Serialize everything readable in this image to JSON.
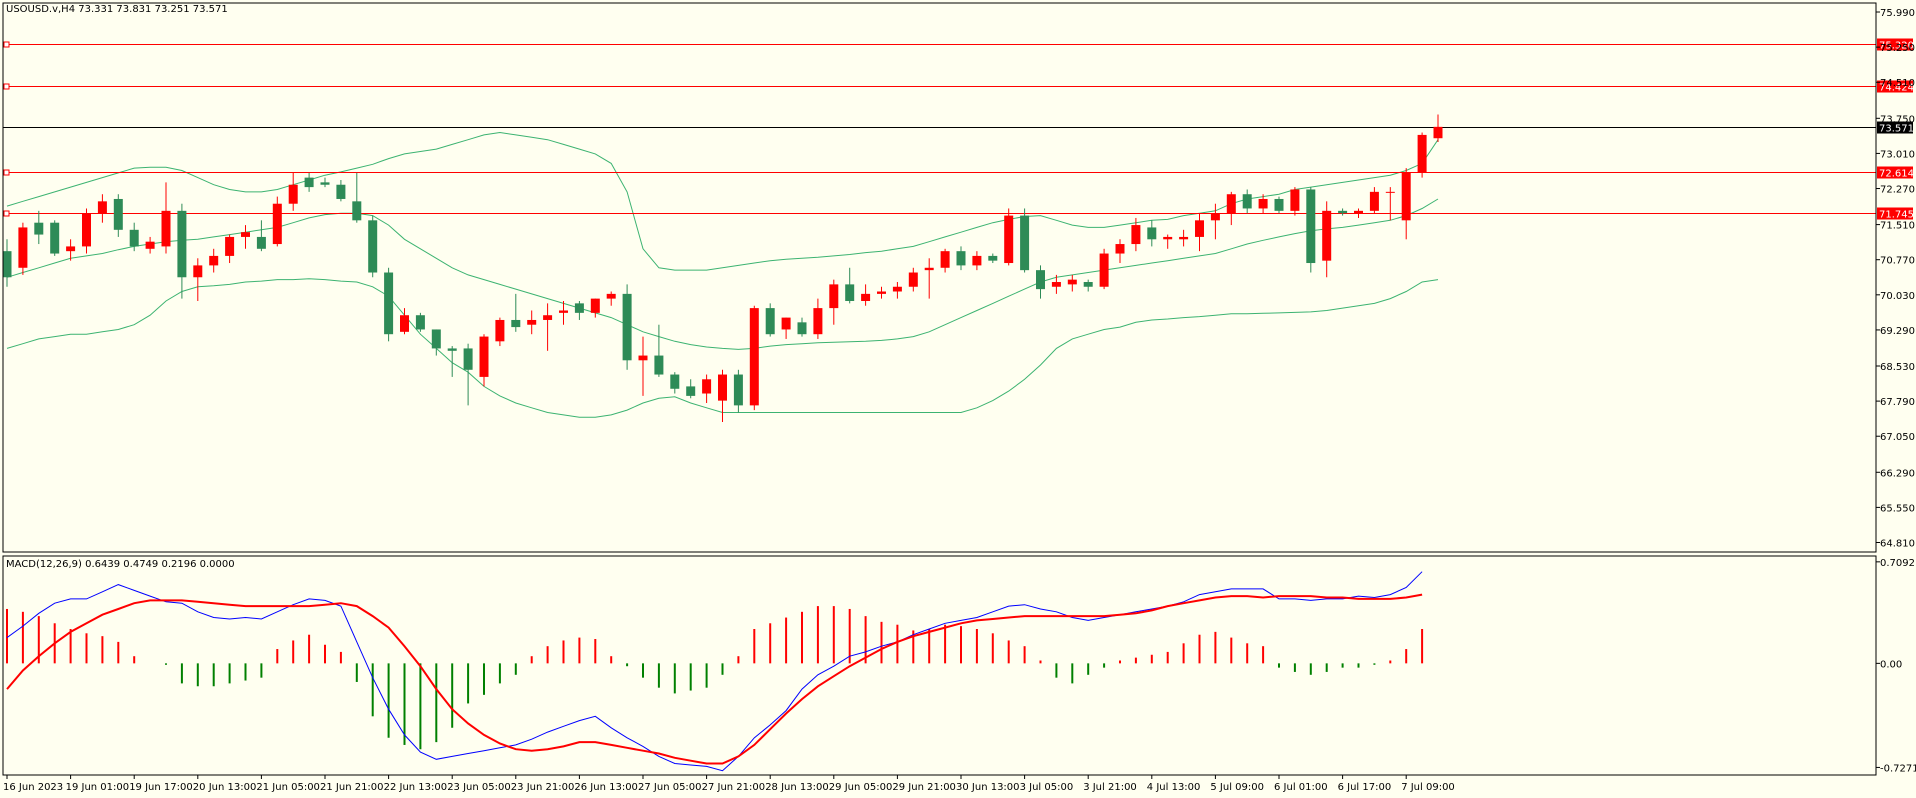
{
  "window": {
    "symbol_line": "USOUSD.v,H4  73.331 73.831 73.251 73.571",
    "macd_line": "MACD(12,26,9) 0.6439 0.4749 0.2196 0.0000"
  },
  "colors": {
    "background": "#fffff0",
    "bull_body": "#ff0000",
    "bear_body": "#2e8b57",
    "bollinger": "#3cb371",
    "level_line": "#ff0000",
    "current_price_line": "#000000",
    "macd_line": "#0000ff",
    "signal_line": "#ff0000",
    "hist_positive": "#ff0000",
    "hist_negative": "#008000"
  },
  "chart_data": [
    {
      "type": "candlestick",
      "title": "USOUSD.v,H4  73.331 73.831 73.251 73.571",
      "ylim": [
        64.61,
        76.18
      ],
      "y_ticks": [
        "75.990",
        "75.250",
        "74.510",
        "73.750",
        "73.010",
        "72.270",
        "71.510",
        "70.770",
        "70.030",
        "69.290",
        "68.530",
        "67.790",
        "67.050",
        "66.290",
        "65.550",
        "64.810"
      ],
      "x_tick_labels": [
        "16 Jun 2023",
        "19 Jun 01:00",
        "19 Jun 17:00",
        "20 Jun 13:00",
        "21 Jun 05:00",
        "21 Jun 21:00",
        "22 Jun 13:00",
        "23 Jun 05:00",
        "23 Jun 21:00",
        "26 Jun 13:00",
        "27 Jun 05:00",
        "27 Jun 21:00",
        "28 Jun 13:00",
        "29 Jun 05:00",
        "29 Jun 21:00",
        "30 Jun 13:00",
        "3 Jul 05:00",
        "3 Jul 21:00",
        "4 Jul 13:00",
        "5 Jul 09:00",
        "6 Jul 01:00",
        "6 Jul 17:00",
        "7 Jul 09:00"
      ],
      "levels": [
        {
          "label": "75.320",
          "value": 75.32
        },
        {
          "label": "74.424",
          "value": 74.424
        },
        {
          "label": "72.614",
          "value": 72.614
        },
        {
          "label": "71.745",
          "value": 71.745
        }
      ],
      "current_price": {
        "label": "73.571",
        "value": 73.571
      },
      "candles": [
        [
          70.95,
          71.2,
          70.2,
          70.4
        ],
        [
          70.6,
          71.55,
          70.45,
          71.45
        ],
        [
          71.55,
          71.8,
          71.1,
          71.3
        ],
        [
          71.55,
          71.6,
          70.85,
          70.9
        ],
        [
          70.95,
          71.2,
          70.75,
          71.05
        ],
        [
          71.05,
          71.85,
          70.9,
          71.75
        ],
        [
          71.75,
          72.15,
          71.55,
          72.0
        ],
        [
          72.05,
          72.15,
          71.25,
          71.4
        ],
        [
          71.4,
          71.55,
          70.95,
          71.05
        ],
        [
          71.0,
          71.25,
          70.9,
          71.15
        ],
        [
          71.05,
          72.4,
          70.9,
          71.8
        ],
        [
          71.8,
          71.95,
          69.95,
          70.4
        ],
        [
          70.4,
          70.8,
          69.9,
          70.65
        ],
        [
          70.65,
          71.0,
          70.5,
          70.85
        ],
        [
          70.85,
          71.3,
          70.7,
          71.25
        ],
        [
          71.25,
          71.5,
          71.0,
          71.35
        ],
        [
          71.25,
          71.6,
          70.95,
          71.0
        ],
        [
          71.1,
          72.1,
          71.05,
          71.95
        ],
        [
          71.95,
          72.6,
          71.8,
          72.35
        ],
        [
          72.5,
          72.6,
          72.2,
          72.3
        ],
        [
          72.4,
          72.5,
          72.3,
          72.35
        ],
        [
          72.35,
          72.45,
          72.0,
          72.05
        ],
        [
          72.0,
          72.6,
          71.55,
          71.6
        ],
        [
          71.6,
          71.7,
          70.4,
          70.5
        ],
        [
          70.5,
          70.6,
          69.05,
          69.2
        ],
        [
          69.25,
          69.75,
          69.2,
          69.6
        ],
        [
          69.6,
          69.65,
          69.25,
          69.3
        ],
        [
          69.3,
          69.3,
          68.75,
          68.9
        ],
        [
          68.9,
          68.95,
          68.3,
          68.85
        ],
        [
          68.9,
          69.0,
          67.7,
          68.45
        ],
        [
          68.3,
          69.2,
          68.1,
          69.15
        ],
        [
          69.05,
          69.55,
          68.95,
          69.5
        ],
        [
          69.5,
          70.05,
          69.25,
          69.35
        ],
        [
          69.4,
          69.7,
          69.2,
          69.5
        ],
        [
          69.5,
          69.85,
          68.85,
          69.6
        ],
        [
          69.65,
          69.9,
          69.4,
          69.7
        ],
        [
          69.85,
          69.9,
          69.5,
          69.65
        ],
        [
          69.65,
          69.95,
          69.55,
          69.95
        ],
        [
          69.95,
          70.1,
          69.8,
          70.05
        ],
        [
          70.05,
          70.25,
          68.45,
          68.65
        ],
        [
          68.65,
          69.15,
          67.9,
          68.75
        ],
        [
          68.75,
          69.4,
          68.3,
          68.35
        ],
        [
          68.35,
          68.4,
          67.95,
          68.05
        ],
        [
          68.1,
          68.25,
          67.85,
          67.9
        ],
        [
          67.95,
          68.35,
          67.75,
          68.25
        ],
        [
          67.8,
          68.45,
          67.35,
          68.35
        ],
        [
          68.35,
          68.45,
          67.55,
          67.7
        ],
        [
          67.7,
          69.8,
          67.6,
          69.75
        ],
        [
          69.75,
          69.85,
          69.15,
          69.2
        ],
        [
          69.3,
          69.55,
          69.1,
          69.55
        ],
        [
          69.45,
          69.55,
          69.15,
          69.2
        ],
        [
          69.2,
          69.95,
          69.1,
          69.75
        ],
        [
          69.75,
          70.35,
          69.4,
          70.25
        ],
        [
          70.25,
          70.6,
          69.85,
          69.9
        ],
        [
          69.9,
          70.25,
          69.8,
          70.05
        ],
        [
          70.05,
          70.2,
          69.95,
          70.1
        ],
        [
          70.1,
          70.3,
          69.95,
          70.2
        ],
        [
          70.2,
          70.6,
          70.1,
          70.5
        ],
        [
          70.55,
          70.8,
          69.95,
          70.6
        ],
        [
          70.6,
          71.0,
          70.5,
          70.95
        ],
        [
          70.95,
          71.05,
          70.55,
          70.65
        ],
        [
          70.65,
          70.95,
          70.55,
          70.85
        ],
        [
          70.85,
          70.9,
          70.7,
          70.75
        ],
        [
          70.7,
          71.85,
          70.65,
          71.7
        ],
        [
          71.7,
          71.85,
          70.5,
          70.55
        ],
        [
          70.55,
          70.65,
          69.95,
          70.15
        ],
        [
          70.2,
          70.45,
          70.05,
          70.3
        ],
        [
          70.25,
          70.45,
          70.1,
          70.35
        ],
        [
          70.3,
          70.35,
          70.1,
          70.2
        ],
        [
          70.2,
          71.0,
          70.15,
          70.9
        ],
        [
          70.9,
          71.2,
          70.7,
          71.1
        ],
        [
          71.1,
          71.65,
          70.95,
          71.5
        ],
        [
          71.45,
          71.6,
          71.05,
          71.2
        ],
        [
          71.2,
          71.3,
          71.0,
          71.25
        ],
        [
          71.2,
          71.4,
          71.05,
          71.25
        ],
        [
          71.25,
          71.75,
          70.95,
          71.6
        ],
        [
          71.6,
          71.95,
          71.2,
          71.75
        ],
        [
          71.75,
          72.2,
          71.5,
          72.15
        ],
        [
          72.15,
          72.25,
          71.75,
          71.85
        ],
        [
          71.85,
          72.15,
          71.75,
          72.05
        ],
        [
          72.05,
          72.1,
          71.75,
          71.8
        ],
        [
          71.8,
          72.3,
          71.7,
          72.25
        ],
        [
          72.25,
          72.3,
          70.5,
          70.7
        ],
        [
          70.75,
          72.0,
          70.4,
          71.8
        ],
        [
          71.8,
          71.85,
          71.7,
          71.75
        ],
        [
          71.75,
          71.85,
          71.65,
          71.8
        ],
        [
          71.8,
          72.3,
          71.75,
          72.2
        ],
        [
          72.2,
          72.3,
          71.6,
          72.2
        ],
        [
          71.6,
          72.7,
          71.2,
          72.6
        ],
        [
          72.6,
          73.45,
          72.5,
          73.4
        ],
        [
          73.33,
          73.83,
          73.25,
          73.57
        ]
      ],
      "bb_upper": [
        71.9,
        72.0,
        72.1,
        72.2,
        72.3,
        72.4,
        72.5,
        72.6,
        72.7,
        72.72,
        72.72,
        72.65,
        72.5,
        72.35,
        72.25,
        72.2,
        72.2,
        72.25,
        72.35,
        72.45,
        72.55,
        72.62,
        72.7,
        72.78,
        72.9,
        73.0,
        73.05,
        73.1,
        73.2,
        73.3,
        73.4,
        73.45,
        73.4,
        73.35,
        73.3,
        73.2,
        73.1,
        73.0,
        72.8,
        72.2,
        71.0,
        70.6,
        70.55,
        70.55,
        70.55,
        70.6,
        70.65,
        70.7,
        70.75,
        70.78,
        70.8,
        70.82,
        70.85,
        70.88,
        70.92,
        70.95,
        71.0,
        71.05,
        71.15,
        71.25,
        71.35,
        71.45,
        71.55,
        71.62,
        71.68,
        71.7,
        71.6,
        71.5,
        71.45,
        71.45,
        71.5,
        71.55,
        71.6,
        71.62,
        71.7,
        71.75,
        71.8,
        71.95,
        72.05,
        72.1,
        72.15,
        72.25,
        72.3,
        72.35,
        72.4,
        72.45,
        72.5,
        72.55,
        72.65,
        72.8,
        73.3
      ],
      "bb_middle": [
        70.4,
        70.5,
        70.6,
        70.7,
        70.8,
        70.85,
        70.9,
        70.98,
        71.05,
        71.1,
        71.15,
        71.18,
        71.2,
        71.25,
        71.3,
        71.35,
        71.4,
        71.45,
        71.55,
        71.65,
        71.72,
        71.75,
        71.75,
        71.7,
        71.5,
        71.2,
        71.0,
        70.8,
        70.6,
        70.45,
        70.35,
        70.25,
        70.15,
        70.05,
        69.95,
        69.85,
        69.75,
        69.65,
        69.55,
        69.4,
        69.25,
        69.15,
        69.05,
        68.98,
        68.93,
        68.9,
        68.88,
        68.9,
        68.95,
        68.98,
        69.0,
        69.02,
        69.03,
        69.04,
        69.05,
        69.07,
        69.1,
        69.15,
        69.25,
        69.4,
        69.55,
        69.7,
        69.85,
        70.0,
        70.15,
        70.3,
        70.4,
        70.45,
        70.5,
        70.55,
        70.6,
        70.65,
        70.7,
        70.75,
        70.8,
        70.85,
        70.9,
        71.0,
        71.1,
        71.18,
        71.25,
        71.32,
        71.38,
        71.42,
        71.45,
        71.5,
        71.55,
        71.6,
        71.7,
        71.85,
        72.05
      ],
      "bb_lower": [
        68.9,
        69.0,
        69.1,
        69.15,
        69.2,
        69.2,
        69.25,
        69.3,
        69.4,
        69.6,
        69.9,
        70.1,
        70.2,
        70.22,
        70.25,
        70.3,
        70.32,
        70.35,
        70.35,
        70.37,
        70.35,
        70.32,
        70.3,
        70.2,
        70.0,
        69.6,
        69.2,
        68.9,
        68.6,
        68.4,
        68.1,
        67.9,
        67.75,
        67.65,
        67.55,
        67.5,
        67.45,
        67.45,
        67.5,
        67.6,
        67.75,
        67.85,
        67.88,
        67.75,
        67.65,
        67.55,
        67.55,
        67.55,
        67.55,
        67.55,
        67.55,
        67.55,
        67.55,
        67.55,
        67.55,
        67.55,
        67.55,
        67.55,
        67.55,
        67.55,
        67.55,
        67.65,
        67.8,
        68.0,
        68.25,
        68.55,
        68.9,
        69.1,
        69.2,
        69.3,
        69.35,
        69.45,
        69.5,
        69.52,
        69.55,
        69.57,
        69.6,
        69.63,
        69.63,
        69.64,
        69.65,
        69.66,
        69.67,
        69.7,
        69.75,
        69.8,
        69.85,
        69.95,
        70.1,
        70.3,
        70.35
      ]
    },
    {
      "type": "macd",
      "title": "MACD(12,26,9) 0.6439 0.4749 0.2196 0.0000",
      "ylim": [
        -0.78,
        0.75
      ],
      "y_ticks": [
        "0.7092",
        "0.00",
        "-0.7271"
      ],
      "histogram": [
        0.38,
        0.36,
        0.33,
        0.28,
        0.24,
        0.21,
        0.19,
        0.15,
        0.05,
        0.0,
        -0.01,
        -0.14,
        -0.16,
        -0.16,
        -0.14,
        -0.12,
        -0.1,
        0.1,
        0.16,
        0.2,
        0.13,
        0.08,
        -0.13,
        -0.37,
        -0.52,
        -0.57,
        -0.6,
        -0.55,
        -0.45,
        -0.28,
        -0.22,
        -0.14,
        -0.08,
        0.05,
        0.12,
        0.16,
        0.18,
        0.17,
        0.05,
        -0.02,
        -0.1,
        -0.17,
        -0.21,
        -0.19,
        -0.17,
        -0.08,
        0.05,
        0.24,
        0.28,
        0.32,
        0.36,
        0.4,
        0.4,
        0.38,
        0.33,
        0.29,
        0.27,
        0.23,
        0.24,
        0.27,
        0.26,
        0.24,
        0.21,
        0.16,
        0.12,
        0.02,
        -0.1,
        -0.14,
        -0.08,
        -0.03,
        0.02,
        0.04,
        0.06,
        0.08,
        0.14,
        0.2,
        0.22,
        0.18,
        0.14,
        0.12,
        -0.03,
        -0.06,
        -0.08,
        -0.06,
        -0.03,
        -0.03,
        -0.01,
        0.02,
        0.1,
        0.24
      ],
      "macd": [
        0.18,
        0.26,
        0.35,
        0.42,
        0.45,
        0.45,
        0.5,
        0.55,
        0.51,
        0.47,
        0.43,
        0.42,
        0.36,
        0.32,
        0.31,
        0.32,
        0.31,
        0.36,
        0.41,
        0.45,
        0.44,
        0.4,
        0.15,
        -0.1,
        -0.32,
        -0.5,
        -0.62,
        -0.67,
        -0.65,
        -0.63,
        -0.61,
        -0.59,
        -0.57,
        -0.53,
        -0.48,
        -0.44,
        -0.4,
        -0.37,
        -0.45,
        -0.52,
        -0.58,
        -0.65,
        -0.7,
        -0.71,
        -0.72,
        -0.75,
        -0.65,
        -0.52,
        -0.43,
        -0.33,
        -0.18,
        -0.08,
        -0.02,
        0.05,
        0.08,
        0.12,
        0.15,
        0.2,
        0.24,
        0.28,
        0.3,
        0.32,
        0.36,
        0.4,
        0.41,
        0.38,
        0.36,
        0.32,
        0.3,
        0.32,
        0.34,
        0.36,
        0.38,
        0.4,
        0.43,
        0.48,
        0.5,
        0.52,
        0.52,
        0.52,
        0.45,
        0.45,
        0.44,
        0.45,
        0.45,
        0.47,
        0.46,
        0.48,
        0.53,
        0.64
      ],
      "signal": [
        -0.18,
        -0.05,
        0.05,
        0.14,
        0.22,
        0.28,
        0.34,
        0.38,
        0.42,
        0.44,
        0.44,
        0.44,
        0.43,
        0.42,
        0.41,
        0.4,
        0.4,
        0.4,
        0.4,
        0.4,
        0.41,
        0.42,
        0.4,
        0.33,
        0.25,
        0.12,
        -0.02,
        -0.18,
        -0.32,
        -0.42,
        -0.5,
        -0.56,
        -0.6,
        -0.61,
        -0.6,
        -0.58,
        -0.55,
        -0.55,
        -0.57,
        -0.59,
        -0.61,
        -0.63,
        -0.66,
        -0.68,
        -0.7,
        -0.7,
        -0.65,
        -0.57,
        -0.46,
        -0.35,
        -0.25,
        -0.16,
        -0.09,
        -0.02,
        0.04,
        0.1,
        0.15,
        0.19,
        0.22,
        0.25,
        0.28,
        0.3,
        0.31,
        0.32,
        0.33,
        0.33,
        0.33,
        0.33,
        0.33,
        0.33,
        0.34,
        0.35,
        0.37,
        0.4,
        0.42,
        0.44,
        0.46,
        0.47,
        0.47,
        0.46,
        0.47,
        0.47,
        0.47,
        0.46,
        0.46,
        0.45,
        0.45,
        0.45,
        0.46,
        0.48
      ]
    }
  ]
}
